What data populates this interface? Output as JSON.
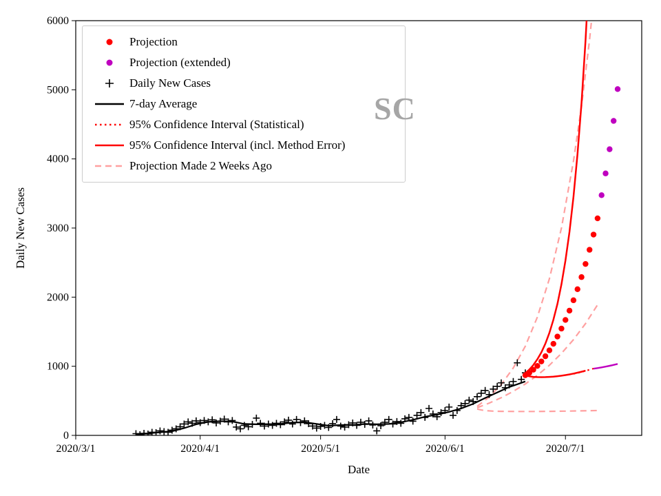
{
  "chart_data": {
    "type": "line",
    "watermark": "SC",
    "xlabel": "Date",
    "ylabel": "Daily New Cases",
    "x_unit": "days since 2020/3/1",
    "xlim": [
      0,
      141
    ],
    "ylim": [
      0,
      6000
    ],
    "grid": false,
    "legend_position": "upper-left",
    "x_ticks": [
      {
        "d": 0,
        "label": "2020/3/1"
      },
      {
        "d": 31,
        "label": "2020/4/1"
      },
      {
        "d": 61,
        "label": "2020/5/1"
      },
      {
        "d": 92,
        "label": "2020/6/1"
      },
      {
        "d": 122,
        "label": "2020/7/1"
      }
    ],
    "y_ticks": [
      0,
      1000,
      2000,
      3000,
      4000,
      5000,
      6000
    ],
    "colors": {
      "red": "#ff0000",
      "black": "#000000",
      "magenta": "#bf00bf",
      "pink": "#ffa0a0"
    },
    "legend": [
      {
        "label": "Projection",
        "marker": "dot",
        "color": "#ff0000"
      },
      {
        "label": "Projection (extended)",
        "marker": "dot",
        "color": "#bf00bf"
      },
      {
        "label": "Daily New Cases",
        "marker": "plus",
        "color": "#000000"
      },
      {
        "label": "7-day Average",
        "marker": "line-solid",
        "color": "#000000"
      },
      {
        "label": "95% Confidence Interval (Statistical)",
        "marker": "line-dotted",
        "color": "#ff0000"
      },
      {
        "label": "95% Confidence Interval (incl. Method Error)",
        "marker": "line-solid",
        "color": "#ff0000"
      },
      {
        "label": "Projection Made 2 Weeks Ago",
        "marker": "line-dashed",
        "color": "#ffa0a0"
      }
    ],
    "series": [
      {
        "name": "old-projection-upper-ci",
        "kind": "line",
        "dash": "dashed",
        "color": "#ffa0a0",
        "width": 2.2,
        "points": [
          [
            100,
            420
          ],
          [
            103,
            556
          ],
          [
            106,
            736
          ],
          [
            109,
            975
          ],
          [
            112,
            1290
          ],
          [
            115,
            1710
          ],
          [
            118,
            2265
          ],
          [
            121,
            3000
          ],
          [
            124,
            3970
          ],
          [
            126,
            4765
          ],
          [
            128,
            5720
          ],
          [
            129,
            6280
          ],
          [
            130,
            6890
          ]
        ]
      },
      {
        "name": "old-projection",
        "kind": "line",
        "dash": "dashed",
        "color": "#ffa0a0",
        "width": 2.2,
        "points": [
          [
            100,
            400
          ],
          [
            103,
            467
          ],
          [
            106,
            545
          ],
          [
            109,
            637
          ],
          [
            112,
            744
          ],
          [
            115,
            869
          ],
          [
            118,
            1015
          ],
          [
            121,
            1186
          ],
          [
            124,
            1385
          ],
          [
            127,
            1618
          ],
          [
            130,
            1890
          ]
        ]
      },
      {
        "name": "old-projection-lower-ci",
        "kind": "line",
        "dash": "dashed",
        "color": "#ffa0a0",
        "width": 2.2,
        "points": [
          [
            100,
            382
          ],
          [
            101,
            368
          ],
          [
            102,
            359
          ],
          [
            104,
            351
          ],
          [
            106,
            348
          ],
          [
            110,
            346
          ],
          [
            114,
            346
          ],
          [
            118,
            348
          ],
          [
            122,
            351
          ],
          [
            126,
            355
          ],
          [
            130,
            360
          ]
        ]
      },
      {
        "name": "seven-day-average",
        "kind": "line",
        "dash": "solid",
        "color": "#000000",
        "width": 2.2,
        "points": [
          [
            15,
            20
          ],
          [
            18,
            28
          ],
          [
            21,
            45
          ],
          [
            24,
            60
          ],
          [
            27,
            105
          ],
          [
            30,
            160
          ],
          [
            33,
            195
          ],
          [
            36,
            205
          ],
          [
            39,
            200
          ],
          [
            42,
            165
          ],
          [
            45,
            160
          ],
          [
            48,
            160
          ],
          [
            51,
            165
          ],
          [
            54,
            185
          ],
          [
            57,
            190
          ],
          [
            60,
            165
          ],
          [
            63,
            140
          ],
          [
            66,
            150
          ],
          [
            69,
            150
          ],
          [
            72,
            165
          ],
          [
            75,
            160
          ],
          [
            78,
            165
          ],
          [
            81,
            190
          ],
          [
            84,
            225
          ],
          [
            87,
            270
          ],
          [
            90,
            300
          ],
          [
            93,
            340
          ],
          [
            96,
            390
          ],
          [
            99,
            455
          ],
          [
            102,
            540
          ],
          [
            105,
            620
          ],
          [
            108,
            700
          ],
          [
            110,
            740
          ],
          [
            112,
            780
          ]
        ]
      },
      {
        "name": "daily-new-cases",
        "kind": "scatter",
        "marker": "plus",
        "color": "#000000",
        "size": 5,
        "points": [
          [
            15,
            25
          ],
          [
            16,
            10
          ],
          [
            17,
            30
          ],
          [
            18,
            20
          ],
          [
            19,
            45
          ],
          [
            20,
            40
          ],
          [
            21,
            65
          ],
          [
            22,
            55
          ],
          [
            23,
            45
          ],
          [
            24,
            75
          ],
          [
            25,
            95
          ],
          [
            26,
            125
          ],
          [
            27,
            165
          ],
          [
            28,
            195
          ],
          [
            29,
            175
          ],
          [
            30,
            210
          ],
          [
            31,
            185
          ],
          [
            32,
            215
          ],
          [
            33,
            195
          ],
          [
            34,
            225
          ],
          [
            35,
            180
          ],
          [
            36,
            205
          ],
          [
            37,
            235
          ],
          [
            38,
            195
          ],
          [
            39,
            215
          ],
          [
            40,
            120
          ],
          [
            41,
            95
          ],
          [
            42,
            145
          ],
          [
            43,
            125
          ],
          [
            44,
            160
          ],
          [
            45,
            250
          ],
          [
            46,
            175
          ],
          [
            47,
            135
          ],
          [
            48,
            165
          ],
          [
            49,
            145
          ],
          [
            50,
            175
          ],
          [
            51,
            155
          ],
          [
            52,
            195
          ],
          [
            53,
            220
          ],
          [
            54,
            165
          ],
          [
            55,
            230
          ],
          [
            56,
            185
          ],
          [
            57,
            210
          ],
          [
            58,
            170
          ],
          [
            59,
            135
          ],
          [
            60,
            105
          ],
          [
            61,
            130
          ],
          [
            62,
            145
          ],
          [
            63,
            115
          ],
          [
            64,
            170
          ],
          [
            65,
            230
          ],
          [
            66,
            135
          ],
          [
            67,
            120
          ],
          [
            68,
            155
          ],
          [
            69,
            180
          ],
          [
            70,
            145
          ],
          [
            71,
            190
          ],
          [
            72,
            160
          ],
          [
            73,
            210
          ],
          [
            74,
            150
          ],
          [
            75,
            65
          ],
          [
            76,
            140
          ],
          [
            77,
            190
          ],
          [
            78,
            230
          ],
          [
            79,
            165
          ],
          [
            80,
            200
          ],
          [
            81,
            175
          ],
          [
            82,
            240
          ],
          [
            83,
            260
          ],
          [
            84,
            205
          ],
          [
            85,
            290
          ],
          [
            86,
            330
          ],
          [
            87,
            260
          ],
          [
            88,
            390
          ],
          [
            89,
            310
          ],
          [
            90,
            270
          ],
          [
            91,
            330
          ],
          [
            92,
            360
          ],
          [
            93,
            410
          ],
          [
            94,
            290
          ],
          [
            95,
            360
          ],
          [
            96,
            430
          ],
          [
            97,
            460
          ],
          [
            98,
            510
          ],
          [
            99,
            490
          ],
          [
            100,
            560
          ],
          [
            101,
            610
          ],
          [
            102,
            650
          ],
          [
            103,
            590
          ],
          [
            104,
            670
          ],
          [
            105,
            710
          ],
          [
            106,
            760
          ],
          [
            107,
            690
          ],
          [
            108,
            730
          ],
          [
            109,
            780
          ],
          [
            110,
            1050
          ],
          [
            111,
            810
          ],
          [
            112,
            905
          ]
        ]
      },
      {
        "name": "ci-method-upper",
        "kind": "line",
        "dash": "solid",
        "color": "#ff0000",
        "width": 2.5,
        "points": [
          [
            112,
            900
          ],
          [
            113,
            952
          ],
          [
            114,
            1018
          ],
          [
            115,
            1100
          ],
          [
            116,
            1202
          ],
          [
            117,
            1328
          ],
          [
            118,
            1483
          ],
          [
            119,
            1672
          ],
          [
            120,
            1903
          ],
          [
            121,
            2185
          ],
          [
            122,
            2528
          ],
          [
            123,
            2945
          ],
          [
            124,
            3452
          ],
          [
            125,
            4067
          ],
          [
            126,
            4812
          ],
          [
            127,
            5714
          ],
          [
            128,
            6807
          ]
        ]
      },
      {
        "name": "ci-method-lower",
        "kind": "line",
        "dash": "solid",
        "color": "#ff0000",
        "width": 2.5,
        "points": [
          [
            112,
            868
          ],
          [
            113,
            854
          ],
          [
            114,
            846
          ],
          [
            115,
            843
          ],
          [
            116,
            842
          ],
          [
            117,
            843
          ],
          [
            118,
            846
          ],
          [
            119,
            850
          ],
          [
            120,
            856
          ],
          [
            121,
            863
          ],
          [
            122,
            872
          ],
          [
            123,
            882
          ],
          [
            124,
            894
          ],
          [
            125,
            907
          ],
          [
            126,
            921
          ],
          [
            127,
            936
          ]
        ]
      },
      {
        "name": "ci-stat-lower",
        "kind": "line",
        "dash": "dotted",
        "color": "#ff0000",
        "width": 2.2,
        "points": [
          [
            124,
            890
          ],
          [
            125,
            903
          ],
          [
            126,
            918
          ],
          [
            127,
            933
          ],
          [
            128,
            950
          ],
          [
            129,
            967
          ]
        ]
      },
      {
        "name": "ci-lower-extended",
        "kind": "line",
        "dash": "solid",
        "color": "#bf00bf",
        "width": 2.5,
        "points": [
          [
            129,
            965
          ],
          [
            130,
            974
          ],
          [
            131,
            984
          ],
          [
            132,
            995
          ],
          [
            133,
            1007
          ],
          [
            134,
            1020
          ],
          [
            135,
            1034
          ]
        ]
      },
      {
        "name": "projection",
        "kind": "scatter",
        "marker": "dot",
        "color": "#ff0000",
        "size": 4.2,
        "points": [
          [
            112,
            870
          ],
          [
            113,
            905
          ],
          [
            114,
            950
          ],
          [
            115,
            1005
          ],
          [
            116,
            1070
          ],
          [
            117,
            1145
          ],
          [
            118,
            1230
          ],
          [
            119,
            1325
          ],
          [
            120,
            1430
          ],
          [
            121,
            1545
          ],
          [
            122,
            1670
          ],
          [
            123,
            1805
          ],
          [
            124,
            1955
          ],
          [
            125,
            2115
          ],
          [
            126,
            2290
          ],
          [
            127,
            2480
          ],
          [
            128,
            2685
          ],
          [
            129,
            2905
          ],
          [
            130,
            3140
          ]
        ]
      },
      {
        "name": "projection-extended",
        "kind": "scatter",
        "marker": "dot",
        "color": "#bf00bf",
        "size": 4.2,
        "points": [
          [
            131,
            3475
          ],
          [
            132,
            3790
          ],
          [
            133,
            4140
          ],
          [
            134,
            4550
          ],
          [
            135,
            5010
          ]
        ]
      }
    ]
  }
}
